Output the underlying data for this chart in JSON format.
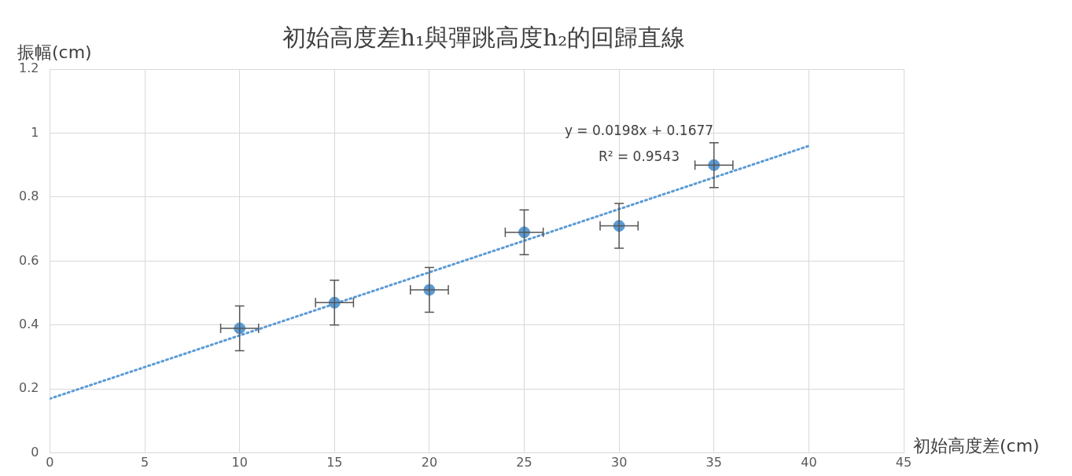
{
  "chart_data": {
    "type": "scatter",
    "title": "初始高度差h₁與彈跳高度h₂的回歸直線",
    "xlabel": "初始高度差(cm)",
    "ylabel": "振幅(cm)",
    "x": [
      10,
      15,
      20,
      25,
      30,
      35
    ],
    "series": [
      {
        "color": "#5b9bd5",
        "values": [
          0.39,
          0.47,
          0.51,
          0.69,
          0.71,
          0.9
        ],
        "errors": [
          0.07,
          0.07,
          0.07,
          0.07,
          0.07,
          0.07
        ],
        "xerrors": [
          1,
          1,
          1,
          1,
          1,
          1
        ],
        "marker": "circle"
      },
      {
        "type": "line",
        "color": "#5b9bd5",
        "x": [
          0,
          40
        ],
        "values": [
          0.17,
          0.96
        ],
        "line_style": "dotted",
        "marker": "none"
      }
    ],
    "annotations": [
      "y = 0.0198x + 0.1677",
      "R² = 0.9543"
    ],
    "xlim": [
      0,
      45
    ],
    "xticks": [
      0,
      5,
      10,
      15,
      20,
      25,
      30,
      35,
      40,
      45
    ],
    "ylim": [
      0,
      1.2
    ],
    "yticks": [
      0,
      0.2,
      0.4,
      0.6,
      0.8,
      1,
      1.2
    ],
    "grid": true,
    "legend": false
  }
}
